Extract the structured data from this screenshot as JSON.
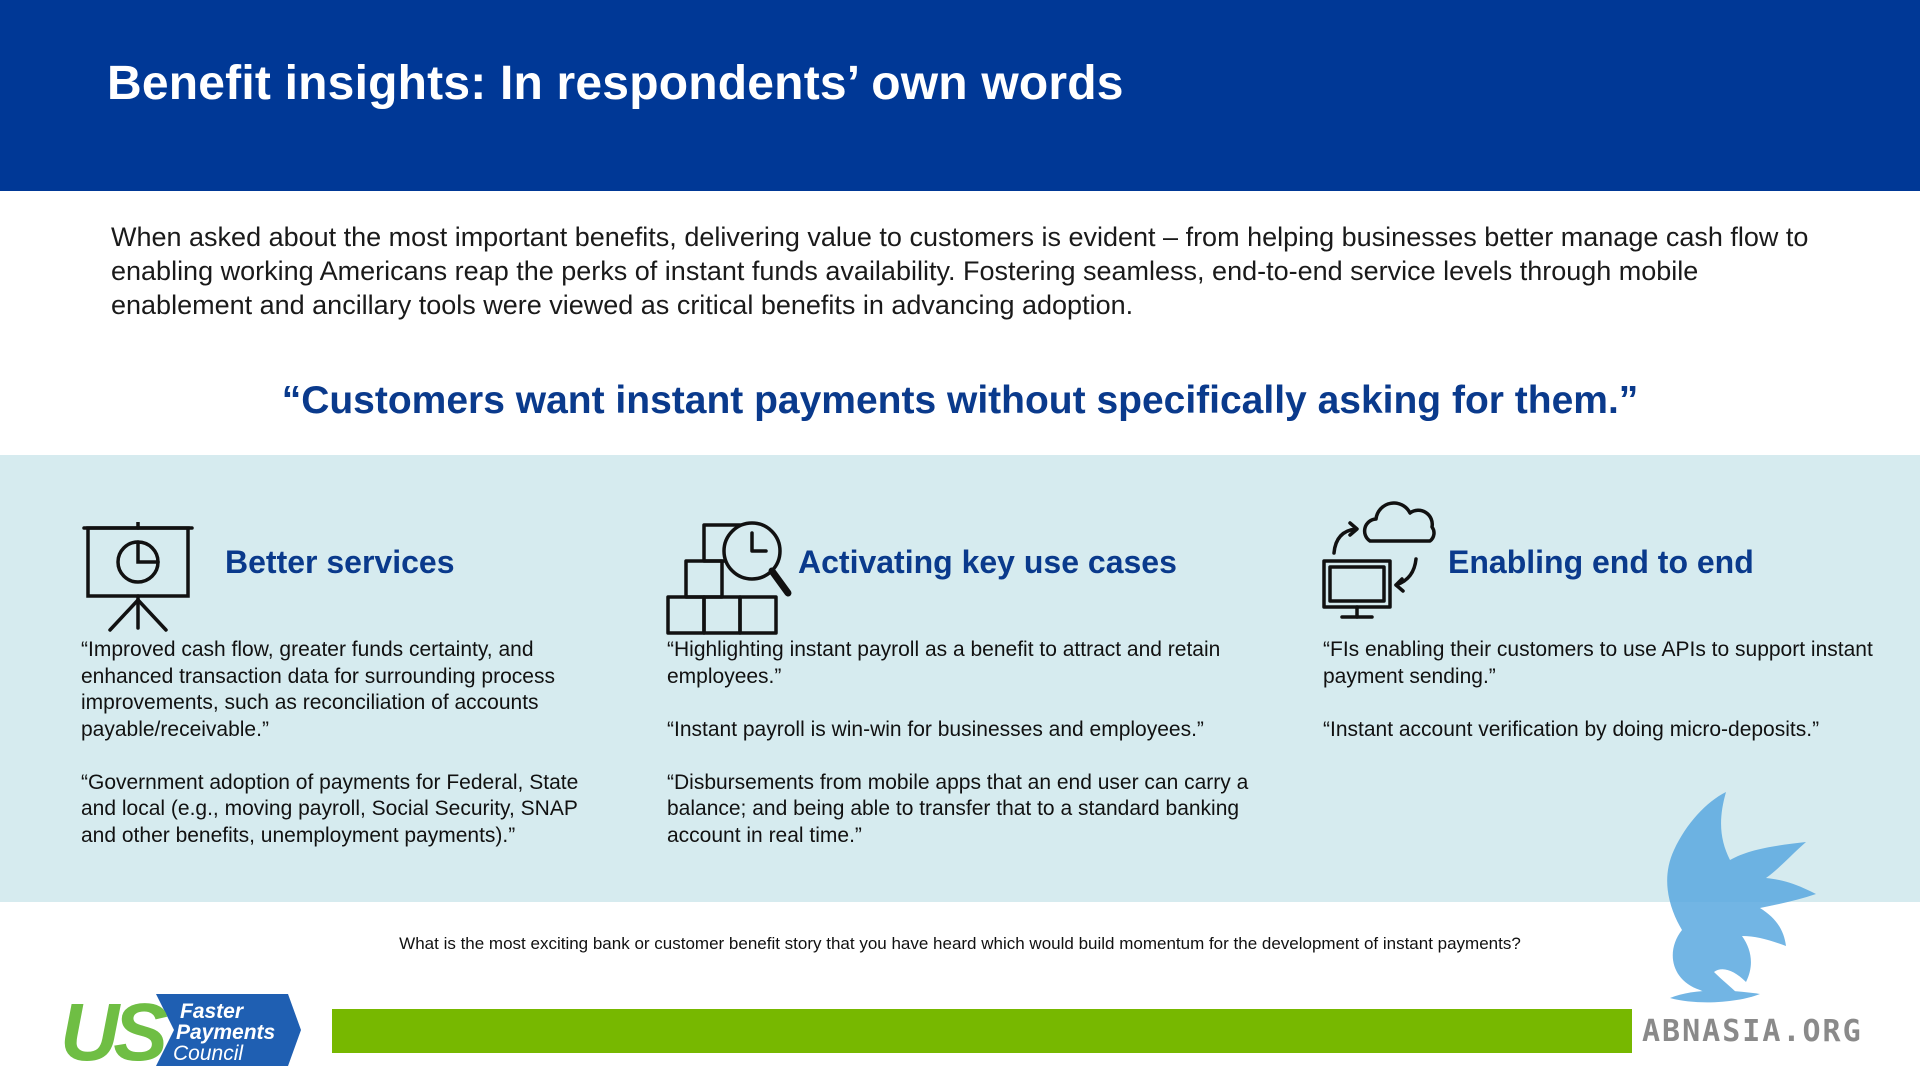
{
  "header": {
    "title": "Benefit insights: In respondents’ own words"
  },
  "intro": {
    "text": "When asked about the most important benefits, delivering value to customers is evident – from helping businesses better manage cash flow to enabling working Americans reap the perks of instant funds availability. Fostering seamless, end-to-end service levels through mobile enablement and ancillary tools were viewed as critical benefits in advancing adoption."
  },
  "pull_quote": "“Customers want instant payments without specifically asking for them.”",
  "columns": [
    {
      "title": "Better services",
      "icon": "presentation-board-icon",
      "quotes": [
        "“Improved cash flow, greater funds certainty, and enhanced transaction data for surrounding process improvements, such as reconciliation of accounts payable/receivable.”",
        "“Government adoption of payments for Federal, State and local (e.g., moving payroll, Social Security, SNAP and other benefits, unemployment payments).”"
      ]
    },
    {
      "title": "Activating key use cases",
      "icon": "boxes-clock-icon",
      "quotes": [
        "“Highlighting instant payroll as a benefit to attract and retain employees.”",
        "“Instant payroll is win-win for businesses and employees.”",
        "“Disbursements from mobile apps that an end user can carry a balance; and being able to transfer that to a standard banking account in real time.”"
      ]
    },
    {
      "title": "Enabling end to end",
      "icon": "cloud-computer-sync-icon",
      "quotes": [
        "“FIs enabling their customers to use APIs to support instant payment sending.”",
        "“Instant account verification by doing micro-deposits.”"
      ]
    }
  ],
  "footer": {
    "question": "What is the most exciting bank or customer benefit story that you have heard which would build momentum for the development of instant payments?",
    "logo": {
      "mark": "US",
      "line1": "Faster",
      "line2": "Payments",
      "line3": "Council"
    },
    "watermark": "ABNASIA.ORG"
  },
  "colors": {
    "header_blue": "#003896",
    "accent_blue": "#0a3a8c",
    "band_bg": "#d6ebef",
    "green_bar": "#77b800",
    "logo_green": "#6fbe44",
    "watermark_blue": "#5aa9e0"
  }
}
